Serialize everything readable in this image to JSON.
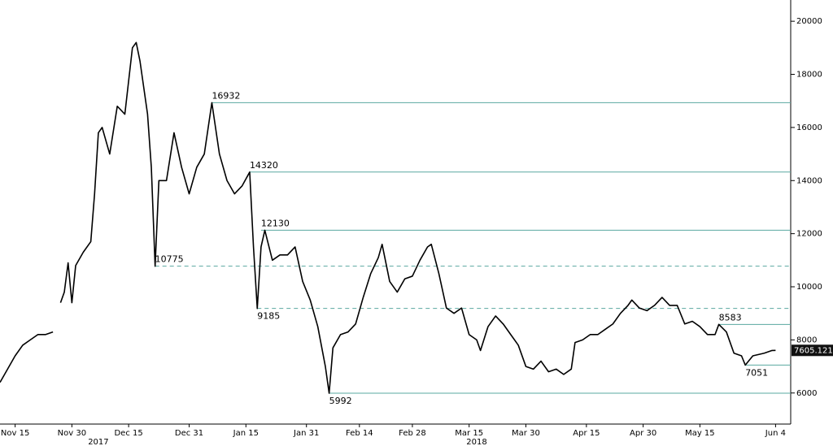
{
  "chart_data": {
    "type": "line",
    "xlim": [
      "2017-11-11",
      "2018-06-08"
    ],
    "ylim": [
      4830,
      20800
    ],
    "xticks": [
      {
        "value": "2017-11-15",
        "label": "Nov 15"
      },
      {
        "value": "2017-11-30",
        "label": "Nov 30"
      },
      {
        "value": "2017-12-15",
        "label": "Dec 15"
      },
      {
        "value": "2017-12-31",
        "label": "Dec 31"
      },
      {
        "value": "2018-01-15",
        "label": "Jan 15"
      },
      {
        "value": "2018-01-31",
        "label": "Jan 31"
      },
      {
        "value": "2018-02-14",
        "label": "Feb 14"
      },
      {
        "value": "2018-02-28",
        "label": "Feb 28"
      },
      {
        "value": "2018-03-15",
        "label": "Mar 15"
      },
      {
        "value": "2018-03-30",
        "label": "Mar 30"
      },
      {
        "value": "2018-04-15",
        "label": "Apr 15"
      },
      {
        "value": "2018-04-30",
        "label": "Apr 30"
      },
      {
        "value": "2018-05-15",
        "label": "May 15"
      },
      {
        "value": "2018-06-04",
        "label": "Jun 4"
      }
    ],
    "year_labels": [
      {
        "value": "2017-12-07",
        "label": "2017"
      },
      {
        "value": "2018-03-17",
        "label": "2018"
      }
    ],
    "yticks": [
      6000,
      8000,
      10000,
      12000,
      14000,
      16000,
      18000,
      20000
    ],
    "series": [
      {
        "color": "#000000",
        "x": [
          "2017-11-11",
          "2017-11-13",
          "2017-11-15",
          "2017-11-17",
          "2017-11-19",
          "2017-11-21",
          "2017-11-23",
          "2017-11-25",
          "2017-11-26",
          "2017-11-27",
          "2017-11-28",
          "2017-11-29",
          "2017-11-30",
          "2017-12-01",
          "2017-12-03",
          "2017-12-05",
          "2017-12-06",
          "2017-12-07",
          "2017-12-08",
          "2017-12-10",
          "2017-12-12",
          "2017-12-14",
          "2017-12-16",
          "2017-12-17",
          "2017-12-18",
          "2017-12-19",
          "2017-12-20",
          "2017-12-21",
          "2017-12-22",
          "2017-12-23",
          "2017-12-25",
          "2017-12-27",
          "2017-12-29",
          "2017-12-31",
          "2018-01-02",
          "2018-01-04",
          "2018-01-06",
          "2018-01-08",
          "2018-01-10",
          "2018-01-12",
          "2018-01-14",
          "2018-01-16",
          "2018-01-17",
          "2018-01-18",
          "2018-01-19",
          "2018-01-20",
          "2018-01-22",
          "2018-01-24",
          "2018-01-26",
          "2018-01-28",
          "2018-01-30",
          "2018-02-01",
          "2018-02-03",
          "2018-02-05",
          "2018-02-06",
          "2018-02-07",
          "2018-02-09",
          "2018-02-11",
          "2018-02-13",
          "2018-02-15",
          "2018-02-17",
          "2018-02-19",
          "2018-02-20",
          "2018-02-22",
          "2018-02-24",
          "2018-02-26",
          "2018-02-28",
          "2018-03-02",
          "2018-03-04",
          "2018-03-05",
          "2018-03-07",
          "2018-03-09",
          "2018-03-11",
          "2018-03-13",
          "2018-03-15",
          "2018-03-17",
          "2018-03-18",
          "2018-03-20",
          "2018-03-22",
          "2018-03-24",
          "2018-03-26",
          "2018-03-28",
          "2018-03-30",
          "2018-04-01",
          "2018-04-03",
          "2018-04-05",
          "2018-04-07",
          "2018-04-09",
          "2018-04-11",
          "2018-04-12",
          "2018-04-14",
          "2018-04-16",
          "2018-04-18",
          "2018-04-20",
          "2018-04-22",
          "2018-04-24",
          "2018-04-26",
          "2018-04-27",
          "2018-04-29",
          "2018-05-01",
          "2018-05-03",
          "2018-05-05",
          "2018-05-07",
          "2018-05-09",
          "2018-05-11",
          "2018-05-13",
          "2018-05-15",
          "2018-05-17",
          "2018-05-19",
          "2018-05-20",
          "2018-05-22",
          "2018-05-24",
          "2018-05-26",
          "2018-05-27",
          "2018-05-29",
          "2018-06-01",
          "2018-06-03",
          "2018-06-04"
        ],
        "values": [
          6400,
          6900,
          7400,
          7800,
          8000,
          8200,
          8200,
          8300,
          null,
          9400,
          9800,
          10900,
          9400,
          10800,
          11300,
          11700,
          13500,
          15800,
          16000,
          15000,
          16800,
          16500,
          19000,
          19200,
          18500,
          17500,
          16500,
          14500,
          10775,
          14000,
          14000,
          15800,
          14500,
          13500,
          14500,
          15000,
          16932,
          15000,
          14000,
          13500,
          13800,
          14320,
          11500,
          9185,
          11500,
          12130,
          11000,
          11200,
          11200,
          11500,
          10200,
          9500,
          8500,
          7000,
          5992,
          7700,
          8200,
          8300,
          8600,
          9600,
          10500,
          11100,
          11600,
          10200,
          9800,
          10300,
          10400,
          11000,
          11500,
          11600,
          10500,
          9200,
          9000,
          9200,
          8200,
          8000,
          7600,
          8500,
          8900,
          8600,
          8200,
          7800,
          7000,
          6900,
          7200,
          6800,
          6900,
          6700,
          6900,
          7900,
          8000,
          8200,
          8200,
          8400,
          8600,
          9000,
          9300,
          9500,
          9200,
          9100,
          9300,
          9600,
          9300,
          9300,
          8600,
          8700,
          8500,
          8200,
          8200,
          8583,
          8300,
          7500,
          7400,
          7051,
          7400,
          7500,
          7600,
          7605.1211
        ]
      }
    ],
    "levels": [
      {
        "value": 16932,
        "start": "2018-01-06",
        "dashed": false,
        "label_side": "above"
      },
      {
        "value": 14320,
        "start": "2018-01-16",
        "dashed": false,
        "label_side": "above"
      },
      {
        "value": 12130,
        "start": "2018-01-19",
        "dashed": false,
        "label_side": "above"
      },
      {
        "value": 10775,
        "start": "2017-12-22",
        "dashed": true,
        "label_side": "above"
      },
      {
        "value": 9185,
        "start": "2018-01-18",
        "dashed": true,
        "label_side": "below"
      },
      {
        "value": 8583,
        "start": "2018-05-20",
        "dashed": false,
        "label_side": "above"
      },
      {
        "value": 7051,
        "start": "2018-05-27",
        "dashed": false,
        "label_side": "below"
      },
      {
        "value": 5992,
        "start": "2018-02-06",
        "dashed": false,
        "label_side": "below"
      }
    ],
    "level_color": "#5aa8a0",
    "last_price": 7605.1211
  }
}
